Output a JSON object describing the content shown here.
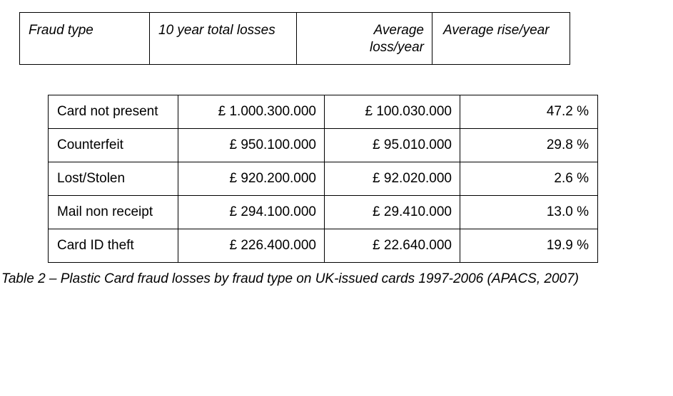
{
  "header": {
    "fraud_type": "Fraud type",
    "total_losses": "10 year total losses",
    "average_loss_line1": "Average",
    "average_loss_line2": "loss/year",
    "average_rise": "Average rise/year"
  },
  "rows": [
    {
      "type": "Card not present",
      "total": "£ 1.000.300.000",
      "average": "£ 100.030.000",
      "rise": "47.2 %"
    },
    {
      "type": "Counterfeit",
      "total": "£ 950.100.000",
      "average": "£ 95.010.000",
      "rise": "29.8 %"
    },
    {
      "type": "Lost/Stolen",
      "total": "£ 920.200.000",
      "average": "£ 92.020.000",
      "rise": "2.6 %"
    },
    {
      "type": "Mail non receipt",
      "total": "£ 294.100.000",
      "average": "£ 29.410.000",
      "rise": "13.0 %"
    },
    {
      "type": "Card ID theft",
      "total": "£ 226.400.000",
      "average": "£ 22.640.000",
      "rise": "19.9 %"
    }
  ],
  "caption": "Table 2 – Plastic Card fraud losses by fraud type on UK-issued cards 1997-2006 (APACS, 2007)"
}
